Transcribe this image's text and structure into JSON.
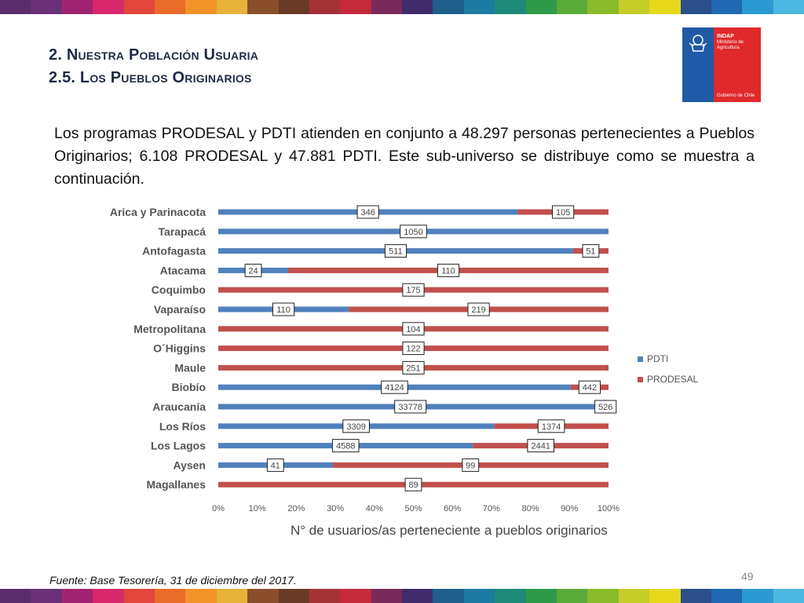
{
  "title": {
    "line1": "2. Nuestra Población Usuaria",
    "line2": "2.5. Los Pueblos Originarios"
  },
  "logo": {
    "org_name": "INDAP",
    "org_sub1": "Ministerio de",
    "org_sub2": "Agricultura",
    "government": "Gobierno de Chile"
  },
  "intro_text": "Los programas PRODESAL y PDTI atienden en conjunto a 48.297 personas pertenecientes a Pueblos Originarios; 6.108 PRODESAL y 47.881 PDTI. Este sub-universo se distribuye como se muestra a continuación.",
  "chart_data": {
    "type": "bar",
    "orientation": "horizontal",
    "stacking": "percent",
    "categories": [
      "Arica y Parinacota",
      "Tarapacá",
      "Antofagasta",
      "Atacama",
      "Coquimbo",
      "Vaparaíso",
      "Metropolitana",
      "O´Higgins",
      "Maule",
      "Biobío",
      "Araucanía",
      "Los Ríos",
      "Los Lagos",
      "Aysen",
      "Magallanes"
    ],
    "series": [
      {
        "name": "PDTI",
        "color": "#4f81bd",
        "values": [
          346,
          1050,
          511,
          24,
          0,
          110,
          0,
          0,
          0,
          4124,
          33778,
          3309,
          4588,
          41,
          0
        ]
      },
      {
        "name": "PRODESAL",
        "color": "#c0504d",
        "values": [
          105,
          0,
          51,
          110,
          175,
          219,
          104,
          122,
          251,
          442,
          526,
          1374,
          2441,
          99,
          89
        ]
      }
    ],
    "x_ticks": [
      "0%",
      "10%",
      "20%",
      "30%",
      "40%",
      "50%",
      "60%",
      "70%",
      "80%",
      "90%",
      "100%"
    ],
    "xlim": [
      0,
      100
    ],
    "xlabel": "N° de usuarios/as perteneciente a pueblos originarios",
    "legend_position": "right",
    "grid": false
  },
  "source_text": "Fuente: Base Tesorería, 31 de diciembre del 2017.",
  "page_number": "49",
  "strip_colors": [
    "#5a2d6e",
    "#6b2f7a",
    "#a1236f",
    "#d6286b",
    "#e0463a",
    "#ea6b2a",
    "#f2932a",
    "#e6b23a",
    "#8a4f2a",
    "#6b3a26",
    "#a33236",
    "#c4293b",
    "#7a2a5a",
    "#3f2a6b",
    "#1f5f8b",
    "#1d7aa0",
    "#1e8a7a",
    "#2e9a4a",
    "#5aaa3a",
    "#8bbb2a",
    "#c6cc2a",
    "#e6d81a",
    "#2a4f8b",
    "#1f6ab0",
    "#2a9ad0",
    "#4ab8e0"
  ]
}
